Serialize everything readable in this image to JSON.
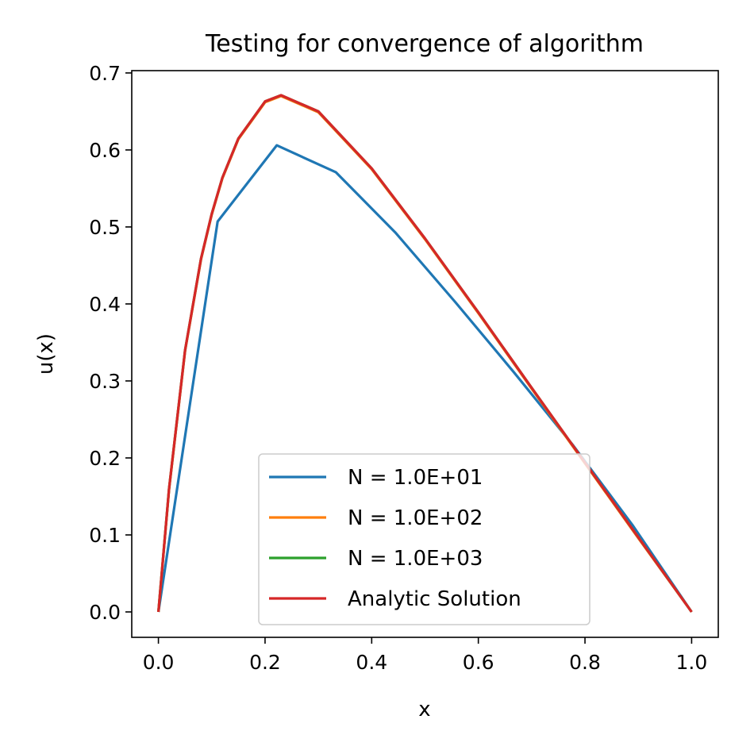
{
  "chart_data": {
    "type": "line",
    "title": "Testing for convergence of algorithm",
    "xlabel": "x",
    "ylabel": "u(x)",
    "xlim": [
      -0.05,
      1.05
    ],
    "ylim": [
      -0.033,
      0.703
    ],
    "xticks": [
      0.0,
      0.2,
      0.4,
      0.6,
      0.8,
      1.0
    ],
    "xtick_labels": [
      "0.0",
      "0.2",
      "0.4",
      "0.6",
      "0.8",
      "1.0"
    ],
    "yticks": [
      0.0,
      0.1,
      0.2,
      0.3,
      0.4,
      0.5,
      0.6,
      0.7
    ],
    "ytick_labels": [
      "0.0",
      "0.1",
      "0.2",
      "0.3",
      "0.4",
      "0.5",
      "0.6",
      "0.7"
    ],
    "grid": false,
    "legend_position": "lower-center",
    "series": [
      {
        "name": "N = 1.0E+01",
        "color": "#1f77b4",
        "x": [
          0.0,
          0.111,
          0.222,
          0.333,
          0.444,
          0.556,
          0.667,
          0.778,
          0.889,
          1.0
        ],
        "y": [
          0.0,
          0.507,
          0.606,
          0.571,
          0.493,
          0.403,
          0.311,
          0.216,
          0.113,
          0.0
        ]
      },
      {
        "name": "N = 1.0E+02",
        "color": "#ff7f0e",
        "x": [
          0.0,
          0.02,
          0.05,
          0.08,
          0.1,
          0.12,
          0.15,
          0.2,
          0.23,
          0.3,
          0.4,
          0.5,
          0.6,
          0.7,
          0.8,
          0.9,
          1.0
        ],
        "y": [
          0.0,
          0.159,
          0.339,
          0.458,
          0.516,
          0.563,
          0.614,
          0.662,
          0.67,
          0.649,
          0.575,
          0.484,
          0.388,
          0.29,
          0.193,
          0.096,
          0.0
        ]
      },
      {
        "name": "N = 1.0E+03",
        "color": "#2ca02c",
        "x": [
          0.0,
          0.02,
          0.05,
          0.08,
          0.1,
          0.12,
          0.15,
          0.2,
          0.23,
          0.3,
          0.4,
          0.5,
          0.6,
          0.7,
          0.8,
          0.9,
          1.0
        ],
        "y": [
          0.0,
          0.16,
          0.34,
          0.459,
          0.517,
          0.564,
          0.615,
          0.663,
          0.671,
          0.65,
          0.576,
          0.485,
          0.389,
          0.291,
          0.194,
          0.097,
          0.0
        ]
      },
      {
        "name": "Analytic Solution",
        "color": "#d62728",
        "x": [
          0.0,
          0.02,
          0.05,
          0.08,
          0.1,
          0.12,
          0.15,
          0.2,
          0.23,
          0.3,
          0.4,
          0.5,
          0.6,
          0.7,
          0.8,
          0.9,
          1.0
        ],
        "y": [
          0.0,
          0.16,
          0.34,
          0.459,
          0.517,
          0.564,
          0.615,
          0.663,
          0.671,
          0.65,
          0.576,
          0.485,
          0.389,
          0.291,
          0.194,
          0.097,
          0.0
        ]
      }
    ]
  }
}
